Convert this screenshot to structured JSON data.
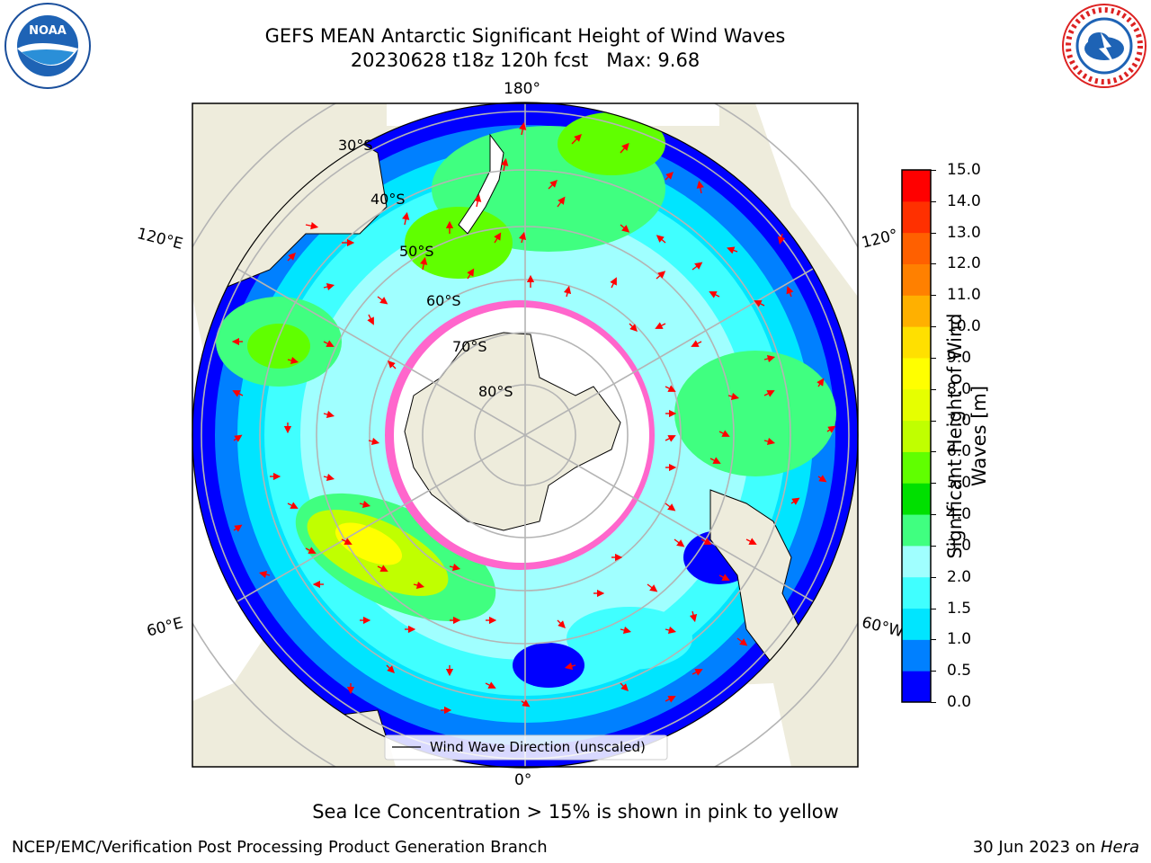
{
  "header": {
    "title_line1": "GEFS MEAN Antarctic Significant Height of Wind Waves",
    "title_line2": "20230628 t18z 120h fcst",
    "max_label": "Max: 9.68"
  },
  "logos": {
    "left": {
      "name": "NOAA",
      "text": "NOAA"
    },
    "right": {
      "name": "National Weather Service"
    }
  },
  "map": {
    "longitude_labels": [
      "180°",
      "0°",
      "120°E",
      "120°",
      "60°E",
      "60°W"
    ],
    "latitude_labels": [
      "30°S",
      "40°S",
      "50°S",
      "60°S",
      "70°S",
      "80°S"
    ],
    "legend_label": "Wind Wave Direction (unscaled)",
    "colors": {
      "ocean_low": "#0000ff",
      "ice": "#ff66cc",
      "land": "#eeecdc",
      "arrow": "#ff0000"
    }
  },
  "colorbar": {
    "title": "Significant Height of Wind Waves [m]",
    "title_line1": "Significant Height of Wind",
    "title_line2": "Waves [m]",
    "ticks": [
      "15.0",
      "14.0",
      "13.0",
      "12.0",
      "11.0",
      "10.0",
      "9.0",
      "8.0",
      "7.0",
      "6.0",
      "5.0",
      "4.0",
      "3.0",
      "2.0",
      "1.5",
      "1.0",
      "0.5",
      "0.0"
    ],
    "colors": [
      "#0000ff",
      "#0080ff",
      "#00e5ff",
      "#40ffff",
      "#a0ffff",
      "#40ff80",
      "#00e000",
      "#60ff00",
      "#c0ff00",
      "#e6ff00",
      "#ffff00",
      "#ffe000",
      "#ffb000",
      "#ff8000",
      "#ff6000",
      "#ff3000",
      "#ff0000"
    ]
  },
  "note": "Sea Ice Concentration > 15% is shown in pink to yellow",
  "footer": {
    "left": "NCEP/EMC/Verification Post Processing Product Generation Branch",
    "right_date": "30 Jun 2023 on ",
    "right_host": "Hera"
  }
}
